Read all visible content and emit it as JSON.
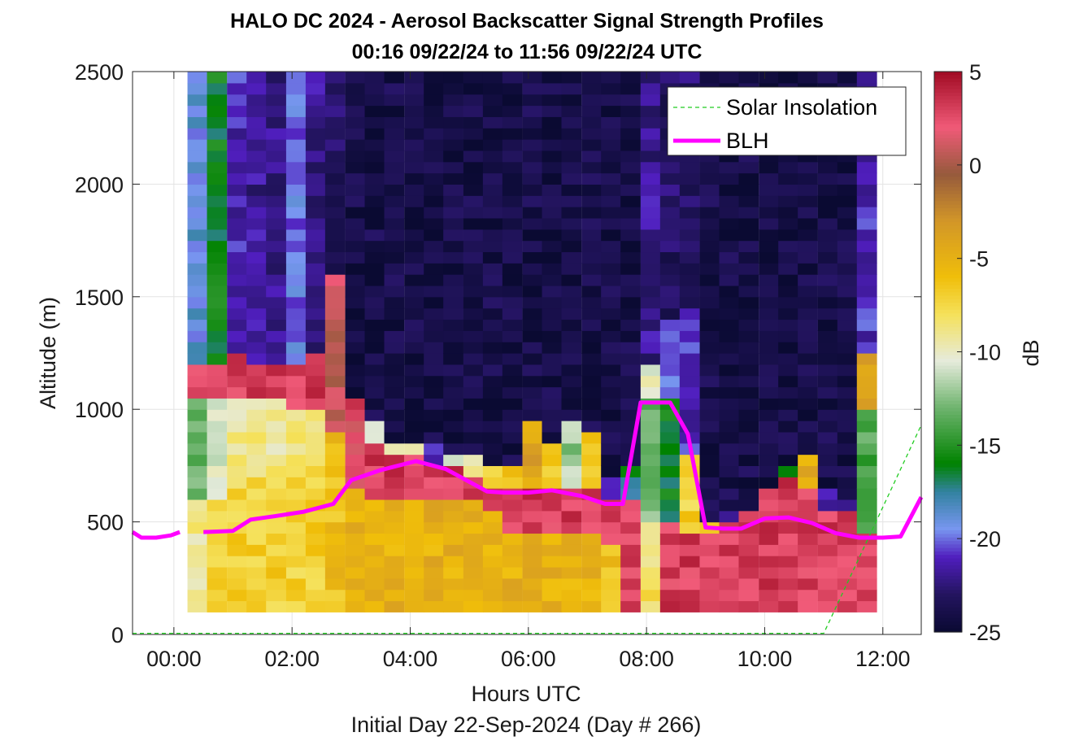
{
  "chart_data": {
    "type": "heatmap",
    "title": "HALO DC 2024 - Aerosol Backscatter Signal Strength Profiles",
    "subtitle": "00:16 09/22/24 to 11:56 09/22/24  UTC",
    "xlabel": "Hours UTC",
    "x_sublabel": "Initial Day 22-Sep-2024 (Day # 266)",
    "ylabel": "Altitude (m)",
    "colorbar_label": "dB",
    "xlim": [
      -0.7,
      12.65
    ],
    "ylim": [
      0,
      2500
    ],
    "clim": [
      -25,
      5
    ],
    "x_ticks": [
      0,
      2,
      4,
      6,
      8,
      10,
      12
    ],
    "x_tick_labels": [
      "00:00",
      "02:00",
      "04:00",
      "06:00",
      "08:00",
      "10:00",
      "12:00"
    ],
    "y_ticks": [
      0,
      500,
      1000,
      1500,
      2000,
      2500
    ],
    "y_tick_labels": [
      "0",
      "500",
      "1000",
      "1500",
      "2000",
      "2500"
    ],
    "colorbar_ticks": [
      5,
      0,
      -5,
      -10,
      -15,
      -20,
      -25
    ],
    "colorbar_tick_labels": [
      "5",
      "0",
      "-5",
      "-10",
      "-15",
      "-20",
      "-25"
    ],
    "grid": true,
    "legend_position": "top-right",
    "legend": [
      {
        "label": "Solar Insolation",
        "color": "#22cc22",
        "style": "dashed"
      },
      {
        "label": "BLH",
        "color": "#ff00ff",
        "style": "solid"
      }
    ],
    "heatmap": {
      "x_start": 0.23,
      "x_step": 0.333,
      "y_start": 100,
      "y_step": 50,
      "profiles": [
        {
          "x": 0.23,
          "near_surface": -9,
          "near_surface_top": 600,
          "mixed": -13,
          "mixed_top": 1050,
          "residual": 3,
          "residual_top": 1200,
          "aloft": -19
        },
        {
          "x": 0.56,
          "near_surface": -7,
          "near_surface_top": 600,
          "mixed": -11,
          "mixed_top": 1050,
          "residual": 3,
          "residual_top": 1200,
          "aloft": -16
        },
        {
          "x": 0.9,
          "near_surface": -7,
          "near_surface_top": 650,
          "mixed": -9,
          "mixed_top": 1050,
          "residual": 3,
          "residual_top": 1250,
          "aloft": -21
        },
        {
          "x": 1.23,
          "near_surface": -7,
          "near_surface_top": 700,
          "mixed": -9,
          "mixed_top": 1050,
          "residual": 3,
          "residual_top": 1200,
          "aloft": -22
        },
        {
          "x": 1.56,
          "near_surface": -7,
          "near_surface_top": 700,
          "mixed": -9,
          "mixed_top": 1050,
          "residual": 3,
          "residual_top": 1200,
          "aloft": -22
        },
        {
          "x": 1.9,
          "near_surface": -7,
          "near_surface_top": 700,
          "mixed": -9,
          "mixed_top": 1000,
          "residual": 3,
          "residual_top": 1200,
          "aloft": -20
        },
        {
          "x": 2.23,
          "near_surface": -7,
          "near_surface_top": 700,
          "mixed": -8,
          "mixed_top": 1000,
          "residual": 3,
          "residual_top": 1250,
          "aloft": -22
        },
        {
          "x": 2.56,
          "near_surface": -6,
          "near_surface_top": 700,
          "mixed": -6,
          "mixed_top": 900,
          "residual": 1,
          "residual_top": 1600,
          "aloft": -23
        },
        {
          "x": 2.9,
          "near_surface": -5,
          "near_surface_top": 650,
          "mixed": 2,
          "mixed_top": 950,
          "residual": 3,
          "residual_top": 1050,
          "aloft": -24
        },
        {
          "x": 3.23,
          "near_surface": -5,
          "near_surface_top": 600,
          "mixed": 3,
          "mixed_top": 850,
          "residual": -10,
          "residual_top": 950,
          "aloft": -24
        },
        {
          "x": 3.56,
          "near_surface": -5,
          "near_surface_top": 600,
          "mixed": 3,
          "mixed_top": 800,
          "residual": -9,
          "residual_top": 850,
          "aloft": -24
        },
        {
          "x": 3.9,
          "near_surface": -5,
          "near_surface_top": 600,
          "mixed": 3,
          "mixed_top": 800,
          "residual": -10,
          "residual_top": 850,
          "aloft": -24
        },
        {
          "x": 4.23,
          "near_surface": -5,
          "near_surface_top": 600,
          "mixed": 3,
          "mixed_top": 750,
          "residual": -21,
          "residual_top": 850,
          "aloft": -24
        },
        {
          "x": 4.56,
          "near_surface": -5,
          "near_surface_top": 600,
          "mixed": 3,
          "mixed_top": 750,
          "residual": -10,
          "residual_top": 800,
          "aloft": -24
        },
        {
          "x": 4.9,
          "near_surface": -5,
          "near_surface_top": 600,
          "mixed": 3,
          "mixed_top": 700,
          "residual": -9,
          "residual_top": 800,
          "aloft": -24
        },
        {
          "x": 5.23,
          "near_surface": -5,
          "near_surface_top": 550,
          "mixed": 3,
          "mixed_top": 650,
          "residual": -7,
          "residual_top": 750,
          "aloft": -24
        },
        {
          "x": 5.56,
          "near_surface": -5,
          "near_surface_top": 450,
          "mixed": 3,
          "mixed_top": 650,
          "residual": -6,
          "residual_top": 750,
          "aloft": -24
        },
        {
          "x": 5.9,
          "near_surface": -5,
          "near_surface_top": 450,
          "mixed": 3,
          "mixed_top": 650,
          "residual": -4,
          "residual_top": 950,
          "aloft": -24
        },
        {
          "x": 6.23,
          "near_surface": -5,
          "near_surface_top": 450,
          "mixed": 3,
          "mixed_top": 650,
          "residual": -7,
          "residual_top": 850,
          "aloft": -24
        },
        {
          "x": 6.56,
          "near_surface": -5,
          "near_surface_top": 450,
          "mixed": 3,
          "mixed_top": 650,
          "residual": -12,
          "residual_top": 950,
          "aloft": -24
        },
        {
          "x": 6.9,
          "near_surface": -5,
          "near_surface_top": 450,
          "mixed": 3,
          "mixed_top": 650,
          "residual": -6,
          "residual_top": 900,
          "aloft": -24
        },
        {
          "x": 7.23,
          "near_surface": -6,
          "near_surface_top": 400,
          "mixed": 3,
          "mixed_top": 600,
          "residual": -21,
          "residual_top": 700,
          "aloft": -24
        },
        {
          "x": 7.56,
          "near_surface": 3,
          "near_surface_top": 500,
          "mixed": 3,
          "mixed_top": 600,
          "residual": -17,
          "residual_top": 750,
          "aloft": -24
        },
        {
          "x": 7.9,
          "near_surface": -8,
          "near_surface_top": 500,
          "mixed": -13,
          "mixed_top": 1050,
          "residual": -10,
          "residual_top": 1200,
          "aloft": -22
        },
        {
          "x": 8.23,
          "near_surface": 3,
          "near_surface_top": 500,
          "mixed": -16,
          "mixed_top": 1050,
          "residual": -20,
          "residual_top": 1400,
          "aloft": -23
        },
        {
          "x": 8.56,
          "near_surface": 3,
          "near_surface_top": 450,
          "mixed": -7,
          "mixed_top": 800,
          "residual": -21,
          "residual_top": 1450,
          "aloft": -23
        },
        {
          "x": 8.9,
          "near_surface": 3,
          "near_surface_top": 450,
          "mixed": -7,
          "mixed_top": 500,
          "residual": -23,
          "residual_top": 600,
          "aloft": -24
        },
        {
          "x": 9.23,
          "near_surface": 3,
          "near_surface_top": 450,
          "mixed": 3,
          "mixed_top": 500,
          "residual": -23,
          "residual_top": 550,
          "aloft": -24
        },
        {
          "x": 9.56,
          "near_surface": 3,
          "near_surface_top": 500,
          "mixed": 3,
          "mixed_top": 550,
          "residual": -24,
          "residual_top": 600,
          "aloft": -24
        },
        {
          "x": 9.9,
          "near_surface": 3,
          "near_surface_top": 550,
          "mixed": 3,
          "mixed_top": 650,
          "residual": -24,
          "residual_top": 700,
          "aloft": -24
        },
        {
          "x": 10.23,
          "near_surface": 3,
          "near_surface_top": 600,
          "mixed": 3,
          "mixed_top": 700,
          "residual": -16,
          "residual_top": 750,
          "aloft": -24
        },
        {
          "x": 10.56,
          "near_surface": 3,
          "near_surface_top": 550,
          "mixed": 3,
          "mixed_top": 650,
          "residual": -5,
          "residual_top": 800,
          "aloft": -24
        },
        {
          "x": 10.9,
          "near_surface": 3,
          "near_surface_top": 450,
          "mixed": 3,
          "mixed_top": 550,
          "residual": -22,
          "residual_top": 650,
          "aloft": -24
        },
        {
          "x": 11.23,
          "near_surface": 3,
          "near_surface_top": 450,
          "mixed": 3,
          "mixed_top": 550,
          "residual": -23,
          "residual_top": 650,
          "aloft": -24
        },
        {
          "x": 11.56,
          "near_surface": 3,
          "near_surface_top": 450,
          "mixed": -14,
          "mixed_top": 1000,
          "residual": -4,
          "residual_top": 1250,
          "aloft": -21
        }
      ]
    },
    "series": [
      {
        "name": "BLH",
        "color": "#ff00ff",
        "segments": [
          {
            "x": [
              -0.7,
              -0.55,
              -0.3,
              -0.05,
              0.1
            ],
            "y": [
              455,
              430,
              430,
              440,
              455
            ]
          },
          {
            "x": [
              0.5,
              1.0,
              1.3,
              1.7,
              2.2,
              2.7,
              3.0,
              3.5,
              4.1,
              4.6,
              5.3,
              5.6,
              6.0,
              6.4,
              6.9,
              7.3,
              7.6,
              7.9,
              8.1,
              8.4,
              8.7,
              9.0,
              9.3,
              9.6,
              10.0,
              10.4,
              10.8,
              11.2,
              11.6,
              11.9,
              12.0,
              12.3,
              12.65
            ],
            "y": [
              455,
              460,
              510,
              525,
              545,
              580,
              685,
              730,
              770,
              735,
              635,
              630,
              630,
              640,
              615,
              580,
              580,
              1030,
              1030,
              1030,
              890,
              475,
              470,
              470,
              515,
              520,
              495,
              450,
              430,
              430,
              430,
              435,
              610
            ]
          }
        ]
      },
      {
        "name": "Solar Insolation",
        "color": "#22cc22",
        "segments": [
          {
            "x": [
              -0.7,
              11.0,
              12.65
            ],
            "y": [
              5,
              5,
              930
            ]
          }
        ]
      }
    ]
  }
}
